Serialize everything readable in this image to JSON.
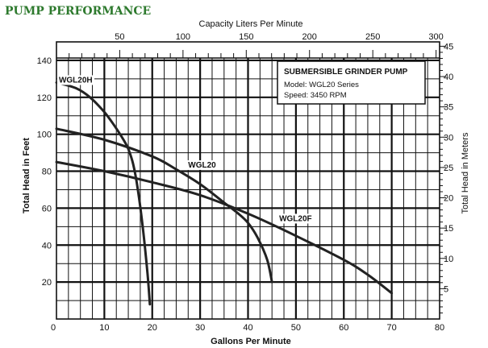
{
  "colors": {
    "title": "#2e7a2e",
    "grid": "#111111",
    "curve": "#222222",
    "background": "#ffffff"
  },
  "chart_data": {
    "type": "line",
    "title": "PUMP PERFORMANCE",
    "xlabel": "Gallons Per Minute",
    "ylabel": "Total Head in Feet",
    "x2label": "Capacity Liters Per Minute",
    "y2label": "Total Head in Meters",
    "xlim": [
      0,
      80
    ],
    "ylim": [
      0,
      150
    ],
    "xticks": [
      10,
      20,
      30,
      40,
      50,
      60,
      70,
      80
    ],
    "x0label": "0",
    "yticks": [
      20,
      40,
      60,
      80,
      100,
      120,
      140
    ],
    "x2lim": [
      0,
      302.8
    ],
    "x2ticks": [
      50,
      100,
      150,
      200,
      250,
      300
    ],
    "y2lim": [
      0,
      45.72
    ],
    "y2ticks": [
      5,
      10,
      15,
      20,
      25,
      30,
      35,
      40,
      45
    ],
    "grid": true,
    "series": [
      {
        "name": "WGL20H",
        "x": [
          0,
          4,
          7,
          10,
          12,
          14,
          15,
          16,
          17,
          18,
          19,
          19.5
        ],
        "y": [
          128,
          125,
          120,
          112,
          105,
          97,
          92,
          84,
          70,
          50,
          25,
          8
        ]
      },
      {
        "name": "WGL20",
        "x": [
          0,
          10,
          20,
          25,
          30,
          35,
          38,
          40,
          42,
          44,
          45
        ],
        "y": [
          103,
          97,
          88,
          81,
          73,
          63,
          57,
          52,
          44,
          32,
          20
        ]
      },
      {
        "name": "WGL20F",
        "x": [
          0,
          10,
          20,
          30,
          40,
          50,
          60,
          65,
          70
        ],
        "y": [
          85,
          80,
          74,
          67,
          57,
          45,
          32,
          24,
          14
        ]
      }
    ],
    "annotations": [
      {
        "text": "WGL20H",
        "x": 0.5,
        "y": 128
      },
      {
        "text": "WGL20",
        "x": 27.5,
        "y": 82
      },
      {
        "text": "WGL20F",
        "x": 46.5,
        "y": 53
      }
    ],
    "legend": {
      "title": "SUBMERSIBLE GRINDER PUMP",
      "model": "Model:  WGL20 Series",
      "speed": "Speed: 3450 RPM",
      "placement": "top-right"
    }
  }
}
